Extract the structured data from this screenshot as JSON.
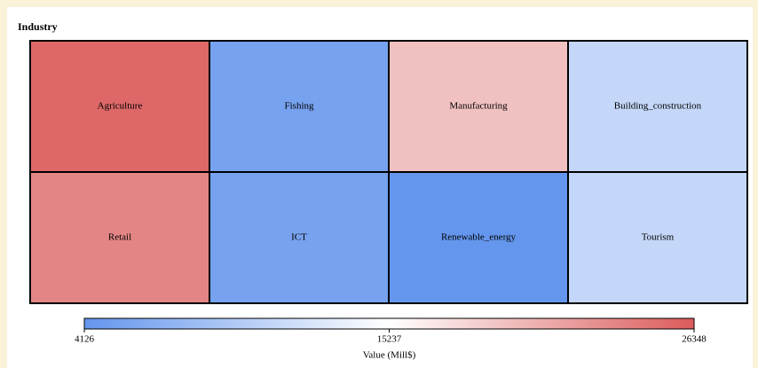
{
  "chart_data": {
    "type": "heatmap",
    "title": "Industry",
    "categories": [
      "Agriculture",
      "Fishing",
      "Manufacturing",
      "Building_construction",
      "Retail",
      "ICT",
      "Renewable_energy",
      "Tourism"
    ],
    "values": [
      25500,
      5500,
      19500,
      11000,
      23500,
      5500,
      4200,
      11000
    ],
    "columns": 4,
    "colormap": [
      "#6495ed",
      "#ffffff",
      "#db5b5b"
    ],
    "colorbar_label": "Value (Mill$)",
    "clim": [
      4126,
      26348
    ],
    "cticks": [
      4126,
      15237,
      26348
    ]
  }
}
